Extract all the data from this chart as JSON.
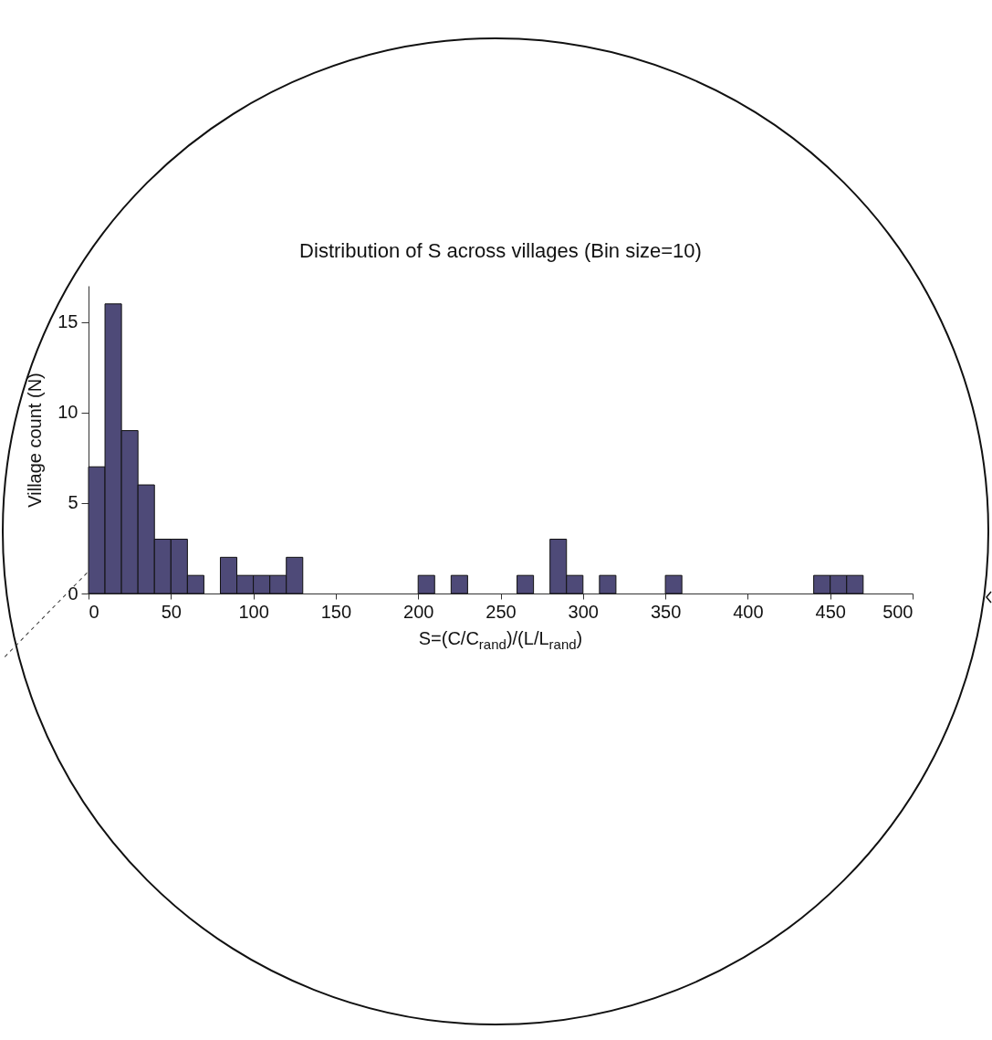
{
  "chart_data": {
    "type": "histogram",
    "title": "Distribution of S across villages (Bin size=10)",
    "xlabel": "S=(C/C$_{rand}$)/(L/L$_{rand}$)",
    "ylabel": "Village count (N)",
    "bins": [
      0,
      10,
      20,
      30,
      40,
      50,
      60,
      70,
      80,
      90,
      100,
      110,
      120,
      130,
      140,
      150,
      160,
      170,
      180,
      190,
      200,
      210,
      220,
      230,
      240,
      250,
      260,
      270,
      280,
      290,
      300,
      310,
      320,
      330,
      340,
      350,
      360,
      370,
      380,
      390,
      400,
      410,
      420,
      430,
      440,
      450,
      460,
      470,
      480,
      490,
      500
    ],
    "values": [
      7,
      16,
      9,
      6,
      3,
      3,
      1,
      0,
      2,
      1,
      1,
      1,
      2,
      0,
      0,
      0,
      0,
      0,
      0,
      0,
      1,
      0,
      1,
      0,
      0,
      0,
      1,
      0,
      3,
      1,
      0,
      1,
      0,
      0,
      0,
      1,
      0,
      0,
      0,
      0,
      0,
      0,
      0,
      0,
      1,
      1,
      1,
      0,
      0,
      0
    ],
    "color": "#4e4a78",
    "xlim": [
      0,
      500
    ],
    "xticks": [
      0,
      50,
      100,
      150,
      200,
      250,
      300,
      350,
      400,
      450,
      500
    ],
    "ylim": [
      0,
      17
    ],
    "yticks": [
      0,
      5,
      10,
      15
    ],
    "grid": false
  }
}
